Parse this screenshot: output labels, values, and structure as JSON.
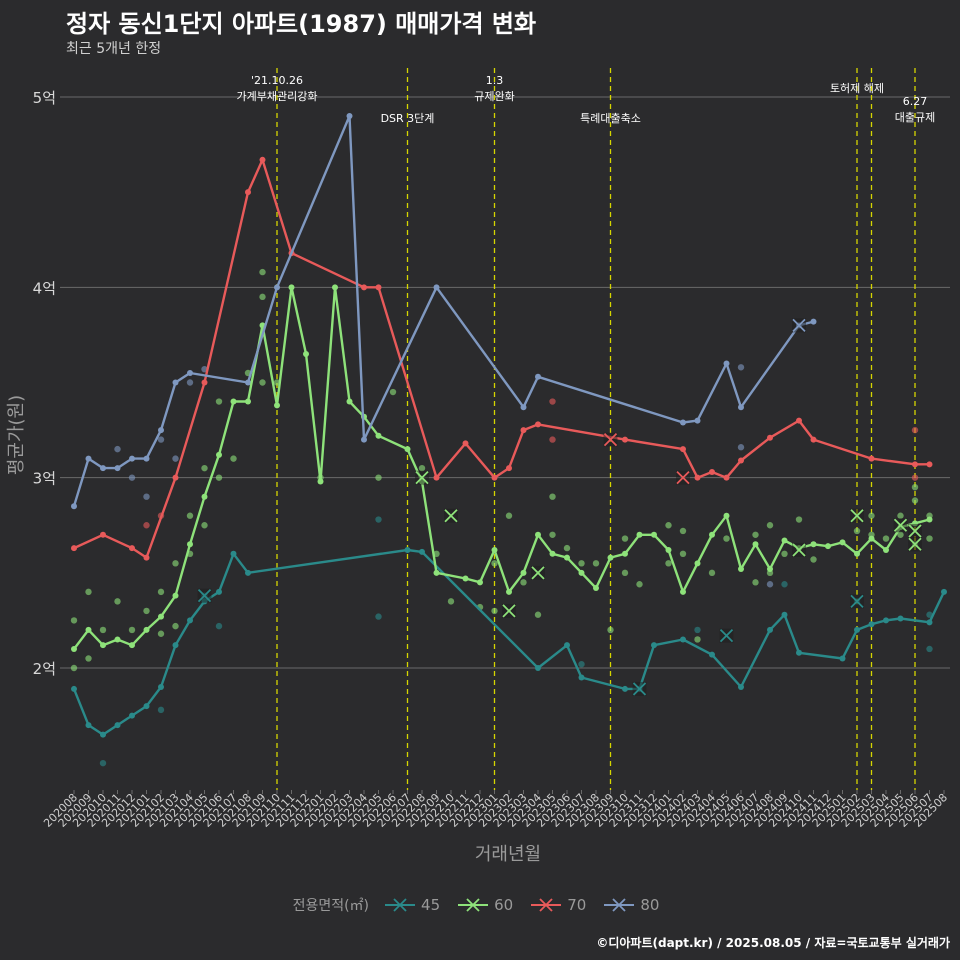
{
  "title": "정자 동신1단지 아파트(1987) 매매가격 변화",
  "subtitle": "최근 5개년 한정",
  "caption": "©디아파트(dapt.kr) / 2025.08.05 / 자료=국토교통부 실거래가",
  "legend": {
    "title": "전용면적(㎡)",
    "items": [
      {
        "label": "45",
        "color": "#2a8a8a"
      },
      {
        "label": "60",
        "color": "#8ee27a"
      },
      {
        "label": "70",
        "color": "#e85a5a"
      },
      {
        "label": "80",
        "color": "#7f98c0"
      }
    ]
  },
  "chart_data": {
    "type": "line",
    "xlabel": "거래년월",
    "ylabel": "평균가(원)",
    "ylim": [
      1.35,
      5.1
    ],
    "y_ticks": [
      {
        "value": 2,
        "label": "2억"
      },
      {
        "value": 3,
        "label": "3억"
      },
      {
        "value": 4,
        "label": "4억"
      },
      {
        "value": 5,
        "label": "5억"
      }
    ],
    "categories": [
      "202008",
      "202009",
      "202010",
      "202011",
      "202012",
      "202101",
      "202102",
      "202103",
      "202104",
      "202105",
      "202106",
      "202107",
      "202108",
      "202109",
      "202110",
      "202111",
      "202112",
      "202201",
      "202202",
      "202203",
      "202204",
      "202205",
      "202206",
      "202207",
      "202208",
      "202209",
      "202210",
      "202211",
      "202212",
      "202301",
      "202302",
      "202303",
      "202304",
      "202305",
      "202306",
      "202307",
      "202308",
      "202309",
      "202310",
      "202311",
      "202312",
      "202401",
      "202402",
      "202403",
      "202404",
      "202405",
      "202406",
      "202407",
      "202408",
      "202409",
      "202410",
      "202411",
      "202412",
      "202501",
      "202502",
      "202503",
      "202504",
      "202505",
      "202506",
      "202507",
      "202508"
    ],
    "grid": true,
    "annotations": [
      {
        "x": "202110",
        "label": "'21.10.26\n가계부채관리강화",
        "row": 0
      },
      {
        "x": "202207",
        "label": "DSR 3단계",
        "row": 1
      },
      {
        "x": "202301",
        "label": "1.3\n규제완화",
        "row": 0
      },
      {
        "x": "202309",
        "label": "특례대출축소",
        "row": 1
      },
      {
        "x": "202502",
        "label": "토허제 해제",
        "row": 0
      },
      {
        "x": "202503",
        "label": "",
        "row": 0
      },
      {
        "x": "202506",
        "label": "6.27\n대출규제",
        "row": 2
      }
    ],
    "series": [
      {
        "name": "45",
        "color": "#2a8a8a",
        "line": [
          [
            "202008",
            1.89
          ],
          [
            "202009",
            1.7
          ],
          [
            "202010",
            1.65
          ],
          [
            "202011",
            1.7
          ],
          [
            "202012",
            1.75
          ],
          [
            "202101",
            1.8
          ],
          [
            "202102",
            1.9
          ],
          [
            "202103",
            2.12
          ],
          [
            "202104",
            2.25
          ],
          [
            "202105",
            2.35
          ],
          [
            "202106",
            2.4
          ],
          [
            "202107",
            2.6
          ],
          [
            "202108",
            2.5
          ],
          [
            "202207",
            2.62
          ],
          [
            "202208",
            2.61
          ],
          [
            "202304",
            2.0
          ],
          [
            "202306",
            2.12
          ],
          [
            "202307",
            1.95
          ],
          [
            "202310",
            1.89
          ],
          [
            "202311",
            1.89
          ],
          [
            "202312",
            2.12
          ],
          [
            "202402",
            2.15
          ],
          [
            "202404",
            2.07
          ],
          [
            "202406",
            1.9
          ],
          [
            "202408",
            2.2
          ],
          [
            "202409",
            2.28
          ],
          [
            "202410",
            2.08
          ],
          [
            "202501",
            2.05
          ],
          [
            "202502",
            2.2
          ],
          [
            "202503",
            2.23
          ],
          [
            "202504",
            2.25
          ],
          [
            "202505",
            2.26
          ],
          [
            "202507",
            2.24
          ],
          [
            "202508",
            2.4
          ]
        ],
        "points": [
          [
            "202010",
            1.5
          ],
          [
            "202102",
            1.78
          ],
          [
            "202105",
            2.38
          ],
          [
            "202106",
            2.22
          ],
          [
            "202205",
            2.27
          ],
          [
            "202205",
            2.78
          ],
          [
            "202307",
            2.02
          ],
          [
            "202403",
            2.2
          ],
          [
            "202409",
            2.44
          ],
          [
            "202502",
            2.35
          ],
          [
            "202507",
            2.28
          ],
          [
            "202507",
            2.1
          ]
        ],
        "x_marks": [
          [
            "202105",
            2.38
          ],
          [
            "202311",
            1.89
          ],
          [
            "202405",
            2.17
          ],
          [
            "202502",
            2.35
          ]
        ]
      },
      {
        "name": "60",
        "color": "#8ee27a",
        "line": [
          [
            "202008",
            2.1
          ],
          [
            "202009",
            2.2
          ],
          [
            "202010",
            2.12
          ],
          [
            "202011",
            2.15
          ],
          [
            "202012",
            2.12
          ],
          [
            "202101",
            2.2
          ],
          [
            "202102",
            2.27
          ],
          [
            "202103",
            2.38
          ],
          [
            "202104",
            2.65
          ],
          [
            "202105",
            2.9
          ],
          [
            "202106",
            3.12
          ],
          [
            "202107",
            3.4
          ],
          [
            "202108",
            3.4
          ],
          [
            "202109",
            3.8
          ],
          [
            "202110",
            3.38
          ],
          [
            "202111",
            4.0
          ],
          [
            "202112",
            3.65
          ],
          [
            "202201",
            2.98
          ],
          [
            "202202",
            4.0
          ],
          [
            "202203",
            3.4
          ],
          [
            "202204",
            3.32
          ],
          [
            "202205",
            3.22
          ],
          [
            "202207",
            3.15
          ],
          [
            "202208",
            2.98
          ],
          [
            "202209",
            2.5
          ],
          [
            "202211",
            2.47
          ],
          [
            "202212",
            2.45
          ],
          [
            "202301",
            2.62
          ],
          [
            "202302",
            2.4
          ],
          [
            "202303",
            2.5
          ],
          [
            "202304",
            2.7
          ],
          [
            "202305",
            2.6
          ],
          [
            "202306",
            2.58
          ],
          [
            "202307",
            2.5
          ],
          [
            "202308",
            2.42
          ],
          [
            "202309",
            2.58
          ],
          [
            "202310",
            2.6
          ],
          [
            "202311",
            2.7
          ],
          [
            "202312",
            2.7
          ],
          [
            "202401",
            2.62
          ],
          [
            "202402",
            2.4
          ],
          [
            "202403",
            2.55
          ],
          [
            "202404",
            2.7
          ],
          [
            "202405",
            2.8
          ],
          [
            "202406",
            2.52
          ],
          [
            "202407",
            2.65
          ],
          [
            "202408",
            2.52
          ],
          [
            "202409",
            2.67
          ],
          [
            "202410",
            2.63
          ],
          [
            "202411",
            2.65
          ],
          [
            "202412",
            2.64
          ],
          [
            "202501",
            2.66
          ],
          [
            "202502",
            2.6
          ],
          [
            "202503",
            2.68
          ],
          [
            "202504",
            2.62
          ],
          [
            "202505",
            2.74
          ],
          [
            "202506",
            2.76
          ],
          [
            "202507",
            2.78
          ]
        ],
        "points": [
          [
            "202008",
            2.25
          ],
          [
            "202008",
            2.0
          ],
          [
            "202009",
            2.4
          ],
          [
            "202009",
            2.05
          ],
          [
            "202010",
            2.2
          ],
          [
            "202011",
            2.35
          ],
          [
            "202012",
            2.2
          ],
          [
            "202101",
            2.3
          ],
          [
            "202102",
            2.4
          ],
          [
            "202102",
            2.18
          ],
          [
            "202103",
            2.55
          ],
          [
            "202103",
            2.22
          ],
          [
            "202104",
            2.8
          ],
          [
            "202104",
            2.6
          ],
          [
            "202105",
            3.05
          ],
          [
            "202105",
            2.75
          ],
          [
            "202106",
            3.4
          ],
          [
            "202106",
            3.0
          ],
          [
            "202107",
            3.1
          ],
          [
            "202108",
            3.55
          ],
          [
            "202109",
            4.08
          ],
          [
            "202109",
            3.95
          ],
          [
            "202109",
            3.5
          ],
          [
            "202110",
            3.5
          ],
          [
            "202201",
            3.0
          ],
          [
            "202205",
            3.0
          ],
          [
            "202206",
            3.45
          ],
          [
            "202208",
            3.05
          ],
          [
            "202209",
            2.6
          ],
          [
            "202210",
            2.35
          ],
          [
            "202212",
            2.32
          ],
          [
            "202301",
            2.55
          ],
          [
            "202301",
            2.3
          ],
          [
            "202302",
            2.8
          ],
          [
            "202303",
            2.45
          ],
          [
            "202304",
            2.28
          ],
          [
            "202305",
            2.9
          ],
          [
            "202305",
            2.7
          ],
          [
            "202306",
            2.63
          ],
          [
            "202307",
            2.55
          ],
          [
            "202308",
            2.55
          ],
          [
            "202309",
            2.2
          ],
          [
            "202310",
            2.5
          ],
          [
            "202310",
            2.68
          ],
          [
            "202311",
            2.44
          ],
          [
            "202401",
            2.75
          ],
          [
            "202401",
            2.55
          ],
          [
            "202402",
            2.72
          ],
          [
            "202402",
            2.6
          ],
          [
            "202403",
            2.15
          ],
          [
            "202404",
            2.5
          ],
          [
            "202405",
            2.68
          ],
          [
            "202407",
            2.7
          ],
          [
            "202407",
            2.45
          ],
          [
            "202408",
            2.75
          ],
          [
            "202408",
            2.5
          ],
          [
            "202409",
            2.6
          ],
          [
            "202410",
            2.78
          ],
          [
            "202411",
            2.57
          ],
          [
            "202502",
            2.72
          ],
          [
            "202503",
            2.8
          ],
          [
            "202503",
            2.7
          ],
          [
            "202504",
            2.68
          ],
          [
            "202505",
            2.8
          ],
          [
            "202505",
            2.7
          ],
          [
            "202506",
            2.95
          ],
          [
            "202506",
            2.88
          ],
          [
            "202506",
            2.65
          ],
          [
            "202507",
            2.8
          ],
          [
            "202507",
            2.68
          ]
        ],
        "x_marks": [
          [
            "202208",
            3.0
          ],
          [
            "202210",
            2.8
          ],
          [
            "202302",
            2.3
          ],
          [
            "202304",
            2.5
          ],
          [
            "202410",
            2.62
          ],
          [
            "202502",
            2.8
          ],
          [
            "202505",
            2.75
          ],
          [
            "202506",
            2.72
          ],
          [
            "202506",
            2.65
          ]
        ]
      },
      {
        "name": "70",
        "color": "#e85a5a",
        "line": [
          [
            "202008",
            2.63
          ],
          [
            "202010",
            2.7
          ],
          [
            "202012",
            2.63
          ],
          [
            "202101",
            2.58
          ],
          [
            "202103",
            3.0
          ],
          [
            "202105",
            3.5
          ],
          [
            "202108",
            4.5
          ],
          [
            "202109",
            4.67
          ],
          [
            "202111",
            4.18
          ],
          [
            "202204",
            4.0
          ],
          [
            "202205",
            4.0
          ],
          [
            "202209",
            3.0
          ],
          [
            "202211",
            3.18
          ],
          [
            "202301",
            3.0
          ],
          [
            "202302",
            3.05
          ],
          [
            "202303",
            3.25
          ],
          [
            "202304",
            3.28
          ],
          [
            "202310",
            3.2
          ],
          [
            "202402",
            3.15
          ],
          [
            "202403",
            3.0
          ],
          [
            "202404",
            3.03
          ],
          [
            "202405",
            3.0
          ],
          [
            "202406",
            3.09
          ],
          [
            "202408",
            3.21
          ],
          [
            "202410",
            3.3
          ],
          [
            "202411",
            3.2
          ],
          [
            "202503",
            3.1
          ],
          [
            "202506",
            3.07
          ],
          [
            "202507",
            3.07
          ]
        ],
        "points": [
          [
            "202101",
            2.75
          ],
          [
            "202102",
            2.8
          ],
          [
            "202305",
            3.2
          ],
          [
            "202305",
            3.4
          ],
          [
            "202506",
            3.25
          ],
          [
            "202506",
            3.0
          ]
        ],
        "x_marks": [
          [
            "202309",
            3.2
          ],
          [
            "202402",
            3.0
          ]
        ]
      },
      {
        "name": "80",
        "color": "#7f98c0",
        "line": [
          [
            "202008",
            2.85
          ],
          [
            "202009",
            3.1
          ],
          [
            "202010",
            3.05
          ],
          [
            "202011",
            3.05
          ],
          [
            "202012",
            3.1
          ],
          [
            "202101",
            3.1
          ],
          [
            "202102",
            3.25
          ],
          [
            "202103",
            3.5
          ],
          [
            "202104",
            3.55
          ],
          [
            "202108",
            3.5
          ],
          [
            "202110",
            4.0
          ],
          [
            "202203",
            4.9
          ],
          [
            "202204",
            3.2
          ],
          [
            "202209",
            4.0
          ],
          [
            "202303",
            3.37
          ],
          [
            "202304",
            3.53
          ],
          [
            "202402",
            3.29
          ],
          [
            "202403",
            3.3
          ],
          [
            "202405",
            3.6
          ],
          [
            "202406",
            3.37
          ],
          [
            "202410",
            3.8
          ],
          [
            "202411",
            3.82
          ]
        ],
        "points": [
          [
            "202011",
            3.15
          ],
          [
            "202012",
            3.0
          ],
          [
            "202101",
            2.9
          ],
          [
            "202102",
            3.2
          ],
          [
            "202103",
            3.1
          ],
          [
            "202104",
            3.5
          ],
          [
            "202105",
            3.57
          ],
          [
            "202406",
            3.58
          ],
          [
            "202406",
            3.16
          ],
          [
            "202408",
            2.44
          ]
        ],
        "x_marks": [
          [
            "202410",
            3.8
          ]
        ]
      }
    ]
  }
}
